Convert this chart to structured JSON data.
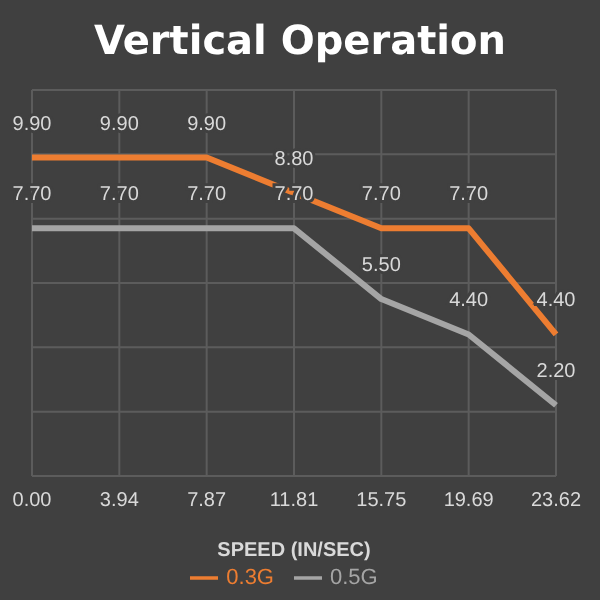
{
  "chart_data": {
    "type": "line",
    "title": "Vertical Operation",
    "xlabel": "SPEED (IN/SEC)",
    "categories": [
      "0.00",
      "3.94",
      "7.87",
      "11.81",
      "15.75",
      "19.69",
      "23.62"
    ],
    "series": [
      {
        "name": "0.3G",
        "color": "#ed7d31",
        "values": [
          9.9,
          9.9,
          9.9,
          8.8,
          7.7,
          7.7,
          4.4
        ],
        "value_labels": [
          "9.90",
          "9.90",
          "9.90",
          "8.80",
          "7.70",
          "7.70",
          "4.40"
        ]
      },
      {
        "name": "0.5G",
        "color": "#a5a5a5",
        "values": [
          7.7,
          7.7,
          7.7,
          7.7,
          5.5,
          4.4,
          2.2
        ],
        "value_labels": [
          "7.70",
          "7.70",
          "7.70",
          "7.70",
          "5.50",
          "4.40",
          "2.20"
        ]
      }
    ],
    "ylim": [
      0,
      12
    ],
    "yticks": [
      {
        "value": 0,
        "label": null
      },
      {
        "value": 2,
        "label": null
      },
      {
        "value": 4,
        "label": null
      },
      {
        "value": 6,
        "label": null
      },
      {
        "value": 8,
        "label": null
      },
      {
        "value": 10,
        "label": null
      },
      {
        "value": 12,
        "label": null
      }
    ],
    "tick_labels": "x",
    "grid": true,
    "legend": "bottom",
    "marker": "none",
    "line_style": "solid"
  }
}
